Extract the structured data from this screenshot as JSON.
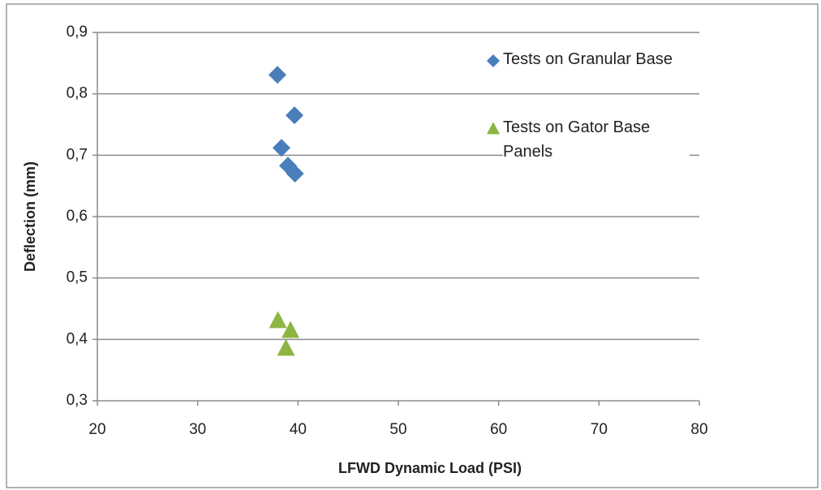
{
  "chart_data": {
    "type": "scatter",
    "x_label": "LFWD Dynamic Load (PSI)",
    "y_label": "Deflection (mm)",
    "xlim": [
      20,
      80
    ],
    "xticks": [
      20,
      30,
      40,
      50,
      60,
      70,
      80
    ],
    "ylim": [
      0.3,
      0.9
    ],
    "yticks": [
      {
        "value": 0.3,
        "label": "0,3"
      },
      {
        "value": 0.4,
        "label": "0,4"
      },
      {
        "value": 0.5,
        "label": "0,5"
      },
      {
        "value": 0.6,
        "label": "0,6"
      },
      {
        "value": 0.7,
        "label": "0,7"
      },
      {
        "value": 0.8,
        "label": "0,8"
      },
      {
        "value": 0.9,
        "label": "0,9"
      }
    ],
    "grid": true,
    "legend": "upper right",
    "series": [
      {
        "name": "Tests on Granular Base",
        "color": "#4a7ebb",
        "marker": "diamond",
        "x": [
          37.95,
          39.65,
          38.35,
          39.0,
          39.7
        ],
        "values": [
          0.831,
          0.765,
          0.712,
          0.683,
          0.67
        ]
      },
      {
        "name": "Tests on Gator Base Panels",
        "color": "#8db543",
        "marker": "triangle",
        "x": [
          38.0,
          39.25,
          38.8
        ],
        "values": [
          0.43,
          0.414,
          0.385
        ]
      }
    ]
  }
}
